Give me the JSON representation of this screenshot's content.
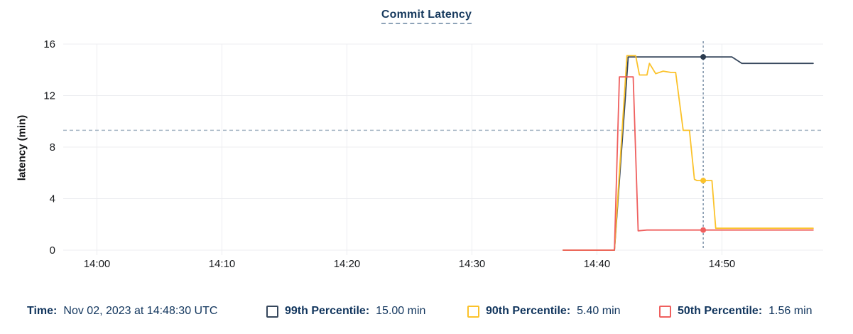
{
  "title": "Commit Latency",
  "legend": {
    "time_label": "Time:",
    "time_value": "Nov 02, 2023 at 14:48:30 UTC",
    "items": [
      {
        "label": "99th Percentile:",
        "value": "15.00 min"
      },
      {
        "label": "90th Percentile:",
        "value": "5.40 min"
      },
      {
        "label": "50th Percentile:",
        "value": "1.56 min"
      }
    ]
  },
  "chart_data": {
    "type": "line",
    "title": "Commit Latency",
    "ylabel": "latency (min)",
    "xlabel": "",
    "y_unit": "min",
    "x_unit": "minutes after 14:00 UTC",
    "ylim": [
      0,
      16
    ],
    "xlim_minutes": [
      -2.7,
      58.1
    ],
    "grid": true,
    "legend_position": "bottom",
    "y_ticks": [
      0,
      4,
      8,
      12,
      16
    ],
    "x_ticks": [
      {
        "t": 0,
        "label": "14:00"
      },
      {
        "t": 10,
        "label": "14:10"
      },
      {
        "t": 20,
        "label": "14:20"
      },
      {
        "t": 30,
        "label": "14:30"
      },
      {
        "t": 40,
        "label": "14:40"
      },
      {
        "t": 50,
        "label": "14:50"
      }
    ],
    "threshold_line": {
      "value": 9.3,
      "style": "dashed"
    },
    "cursor": {
      "t_minutes": 48.5,
      "time": "Nov 02, 2023 at 14:48:30 UTC"
    },
    "series": [
      {
        "id": "99th-percentile",
        "name": "99th Percentile",
        "color": "#36475c",
        "dot_color": "#2b3b4f",
        "cursor_value": 15.0,
        "points": [
          [
            37.3,
            0
          ],
          [
            41.4,
            0
          ],
          [
            42.5,
            15.0
          ],
          [
            50.8,
            15.0
          ],
          [
            51.6,
            14.5
          ],
          [
            57.3,
            14.5
          ]
        ]
      },
      {
        "id": "90th-percentile",
        "name": "90th Percentile",
        "color": "#fbc22a",
        "dot_color": "#fbc22a",
        "cursor_value": 5.4,
        "points": [
          [
            37.3,
            0
          ],
          [
            41.4,
            0
          ],
          [
            42.4,
            15.1
          ],
          [
            43.1,
            15.1
          ],
          [
            43.4,
            13.6
          ],
          [
            44.0,
            13.6
          ],
          [
            44.2,
            14.5
          ],
          [
            44.7,
            13.7
          ],
          [
            45.3,
            13.9
          ],
          [
            45.9,
            13.8
          ],
          [
            46.3,
            13.8
          ],
          [
            46.9,
            9.3
          ],
          [
            47.4,
            9.3
          ],
          [
            47.8,
            5.5
          ],
          [
            48.0,
            5.4
          ],
          [
            49.2,
            5.4
          ],
          [
            49.5,
            1.7
          ],
          [
            57.3,
            1.7
          ]
        ]
      },
      {
        "id": "50th-percentile",
        "name": "50th Percentile",
        "color": "#ef5f5e",
        "dot_color": "#ef5f5e",
        "cursor_value": 1.56,
        "points": [
          [
            37.3,
            0
          ],
          [
            41.4,
            0
          ],
          [
            41.8,
            13.45
          ],
          [
            42.9,
            13.45
          ],
          [
            43.3,
            1.5
          ],
          [
            44.0,
            1.56
          ],
          [
            57.3,
            1.56
          ]
        ]
      }
    ]
  }
}
